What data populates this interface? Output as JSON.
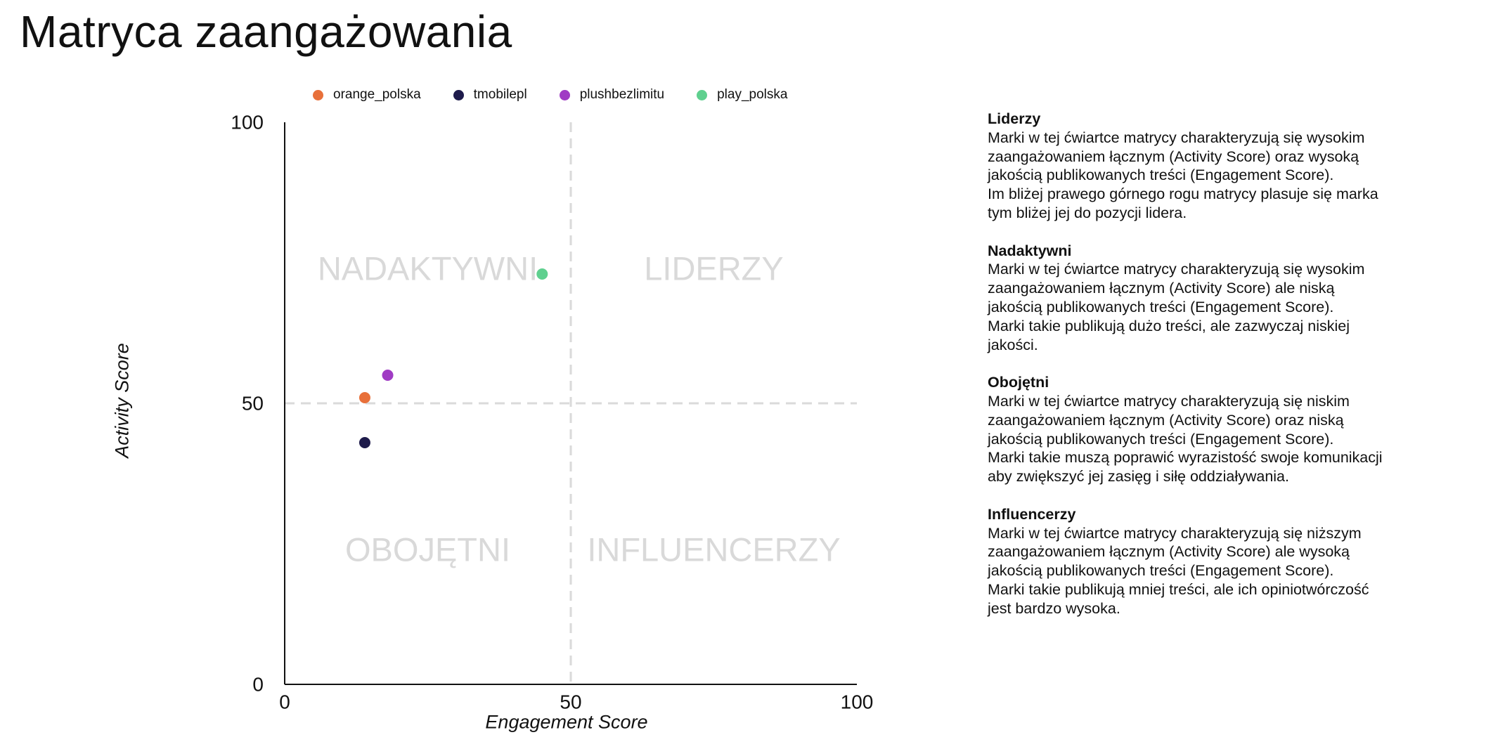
{
  "title": "Matryca zaangażowania",
  "legend": [
    {
      "name": "orange_polska",
      "color": "#e8703a"
    },
    {
      "name": "tmobilepl",
      "color": "#1e1b4b"
    },
    {
      "name": "plushbezlimitu",
      "color": "#a03bc4"
    },
    {
      "name": "play_polska",
      "color": "#5fd08f"
    }
  ],
  "chart_data": {
    "type": "scatter",
    "title": "Matryca zaangażowania",
    "xlabel": "Engagement Score",
    "ylabel": "Activity Score",
    "xlim": [
      0,
      100
    ],
    "ylim": [
      0,
      100
    ],
    "xticks": [
      "0",
      "50",
      "100"
    ],
    "yticks": [
      "0",
      "50",
      "100"
    ],
    "divider": {
      "x": 50,
      "y": 50
    },
    "quadrant_labels": [
      {
        "name": "top-left",
        "text": "NADAKTYWNI",
        "x": 25,
        "y": 74
      },
      {
        "name": "top-right",
        "text": "LIDERZY",
        "x": 75,
        "y": 74
      },
      {
        "name": "bottom-left",
        "text": "OBOJĘTNI",
        "x": 25,
        "y": 24
      },
      {
        "name": "bottom-right",
        "text": "INFLUENCERZY",
        "x": 75,
        "y": 24
      }
    ],
    "series": [
      {
        "name": "orange_polska",
        "color": "#e8703a",
        "x": 14,
        "y": 51
      },
      {
        "name": "tmobilepl",
        "color": "#1e1b4b",
        "x": 14,
        "y": 43
      },
      {
        "name": "plushbezlimitu",
        "color": "#a03bc4",
        "x": 18,
        "y": 55
      },
      {
        "name": "play_polska",
        "color": "#5fd08f",
        "x": 45,
        "y": 73
      }
    ],
    "colors": {
      "axis": "#111111",
      "divider": "#dadada",
      "quadrant_text": "#d9d9d9"
    }
  },
  "descriptions": [
    {
      "heading": "Liderzy",
      "lines": [
        "Marki w tej ćwiartce matrycy charakteryzują się wysokim",
        "zaangażowaniem łącznym (Activity Score) oraz wysoką",
        "jakością publikowanych treści (Engagement Score).",
        "Im bliżej prawego górnego rogu matrycy plasuje się marka",
        "tym bliżej jej do pozycji lidera."
      ]
    },
    {
      "heading": "Nadaktywni",
      "lines": [
        "Marki w tej ćwiartce matrycy charakteryzują się wysokim",
        "zaangażowaniem łącznym (Activity Score) ale niską",
        "jakością publikowanych treści (Engagement Score).",
        "Marki takie publikują dużo treści, ale zazwyczaj niskiej",
        "jakości."
      ]
    },
    {
      "heading": "Obojętni",
      "lines": [
        "Marki w tej ćwiartce matrycy charakteryzują się niskim",
        "zaangażowaniem łącznym (Activity Score) oraz niską",
        "jakością publikowanych treści (Engagement Score).",
        "Marki takie muszą poprawić wyrazistość swoje komunikacji",
        "aby zwiększyć jej zasięg i siłę oddziaływania."
      ]
    },
    {
      "heading": "Influencerzy",
      "lines": [
        "Marki w tej ćwiartce matrycy charakteryzują się niższym",
        "zaangażowaniem łącznym (Activity Score) ale wysoką",
        "jakością publikowanych treści (Engagement Score).",
        "Marki takie publikują mniej treści, ale ich opiniotwórczość",
        "jest bardzo wysoka."
      ]
    }
  ]
}
